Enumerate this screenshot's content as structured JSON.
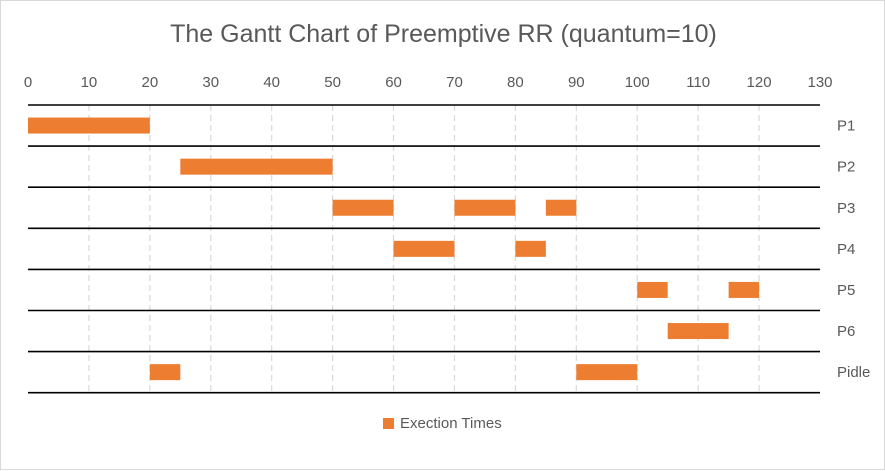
{
  "chart_data": {
    "type": "bar",
    "title": "The Gantt Chart of Preemptive RR (quantum=10)",
    "xlim": [
      0,
      130
    ],
    "x_ticks": [
      0,
      10,
      20,
      30,
      40,
      50,
      60,
      70,
      80,
      90,
      100,
      110,
      120,
      130
    ],
    "x_axis_position": "top",
    "categories": [
      "P1",
      "P2",
      "P3",
      "P4",
      "P5",
      "P6",
      "Pidle"
    ],
    "series": [
      {
        "name": "Exection Times",
        "color": "#ed7d31",
        "segments": [
          {
            "category": "P1",
            "start": 0,
            "end": 20
          },
          {
            "category": "P2",
            "start": 25,
            "end": 50
          },
          {
            "category": "P3",
            "start": 50,
            "end": 60
          },
          {
            "category": "P3",
            "start": 70,
            "end": 80
          },
          {
            "category": "P3",
            "start": 85,
            "end": 90
          },
          {
            "category": "P4",
            "start": 60,
            "end": 70
          },
          {
            "category": "P4",
            "start": 80,
            "end": 85
          },
          {
            "category": "P5",
            "start": 100,
            "end": 105
          },
          {
            "category": "P5",
            "start": 115,
            "end": 120
          },
          {
            "category": "P6",
            "start": 105,
            "end": 115
          },
          {
            "category": "Pidle",
            "start": 20,
            "end": 25
          },
          {
            "category": "Pidle",
            "start": 90,
            "end": 100
          }
        ]
      }
    ],
    "grid": "vertical dashed",
    "legend_position": "bottom"
  }
}
